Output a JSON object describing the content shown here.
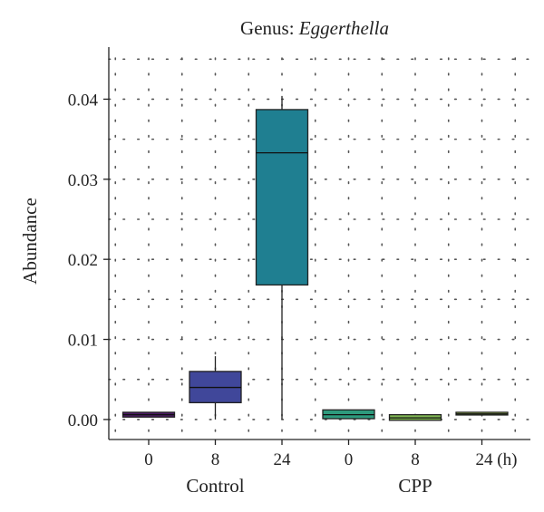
{
  "chart_data": {
    "type": "box",
    "title_prefix": "Genus: ",
    "title_genus": "Eggerthella",
    "ylabel": "Abundance",
    "ylim": [
      -0.0025,
      0.0465
    ],
    "yticks": [
      0.0,
      0.01,
      0.02,
      0.03,
      0.04
    ],
    "ytick_labels": [
      "0.00",
      "0.01",
      "0.02",
      "0.03",
      "0.04"
    ],
    "xtick_labels": [
      "0",
      "8",
      "24",
      "0",
      "8",
      "24 (h)"
    ],
    "groups": [
      {
        "label": "Control",
        "categories": [
          0,
          1,
          2
        ]
      },
      {
        "label": "CPP",
        "categories": [
          3,
          4,
          5
        ]
      }
    ],
    "grid": true,
    "boxes": [
      {
        "time": "0",
        "group": "Control",
        "min": 0.0003,
        "q1": 0.0003,
        "median": 0.0006,
        "q3": 0.0009,
        "max": 0.0009,
        "color": "#4b1a63"
      },
      {
        "time": "8",
        "group": "Control",
        "min": 0.0,
        "q1": 0.0021,
        "median": 0.004,
        "q3": 0.006,
        "max": 0.0079,
        "color": "#40479a"
      },
      {
        "time": "24",
        "group": "Control",
        "min": 0.0,
        "q1": 0.0168,
        "median": 0.0333,
        "q3": 0.0387,
        "max": 0.0404,
        "color": "#1f7f91"
      },
      {
        "time": "0",
        "group": "CPP",
        "min": 0.0001,
        "q1": 0.0001,
        "median": 0.0006,
        "q3": 0.0012,
        "max": 0.0012,
        "color": "#2e9a7d"
      },
      {
        "time": "8",
        "group": "CPP",
        "min": -0.0001,
        "q1": -0.0001,
        "median": 0.0002,
        "q3": 0.0006,
        "max": 0.0006,
        "color": "#7fb552"
      },
      {
        "time": "24",
        "group": "CPP",
        "min": 0.0006,
        "q1": 0.0006,
        "median": 0.0007,
        "q3": 0.0009,
        "max": 0.0009,
        "color": "#9ac14f"
      }
    ]
  }
}
